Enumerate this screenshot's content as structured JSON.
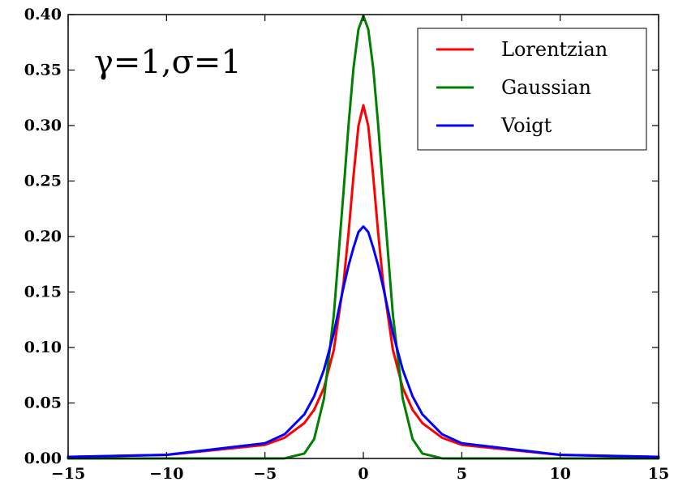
{
  "chart_data": {
    "type": "line",
    "annotation": "γ=1,σ=1",
    "xlim": [
      -15,
      15
    ],
    "ylim": [
      0,
      0.4
    ],
    "x_ticks": [
      -15,
      -10,
      -5,
      0,
      5,
      10,
      15
    ],
    "x_tick_labels": [
      "−15",
      "−10",
      "−5",
      "0",
      "5",
      "10",
      "15"
    ],
    "y_ticks": [
      0,
      0.05,
      0.1,
      0.15,
      0.2,
      0.25,
      0.3,
      0.35,
      0.4
    ],
    "y_tick_labels": [
      "0.00",
      "0.05",
      "0.10",
      "0.15",
      "0.20",
      "0.25",
      "0.30",
      "0.35",
      "0.40"
    ],
    "grid": false,
    "legend_position": "top-right",
    "x": [
      -15,
      -10,
      -5,
      -4,
      -3,
      -2.5,
      -2,
      -1.5,
      -1,
      -0.75,
      -0.5,
      -0.25,
      0,
      0.25,
      0.5,
      0.75,
      1,
      1.5,
      2,
      2.5,
      3,
      4,
      5,
      10,
      15
    ],
    "series": [
      {
        "name": "Lorentzian",
        "color": "#ff0000",
        "values": [
          0.00141,
          0.00315,
          0.01224,
          0.01872,
          0.03183,
          0.0439,
          0.06366,
          0.09794,
          0.15915,
          0.20372,
          0.25465,
          0.29958,
          0.31831,
          0.29958,
          0.25465,
          0.20372,
          0.15915,
          0.09794,
          0.06366,
          0.0439,
          0.03183,
          0.01872,
          0.01224,
          0.00315,
          0.00141
        ]
      },
      {
        "name": "Gaussian",
        "color": "#008000",
        "values": [
          0,
          0,
          1.5e-06,
          0.00013,
          0.00443,
          0.01753,
          0.05399,
          0.12952,
          0.24197,
          0.30114,
          0.35207,
          0.38667,
          0.39894,
          0.38667,
          0.35207,
          0.30114,
          0.24197,
          0.12952,
          0.05399,
          0.01753,
          0.00443,
          0.00013,
          1.5e-06,
          0,
          0
        ]
      },
      {
        "name": "Voigt",
        "color": "#0000ff",
        "values": [
          0.00144,
          0.00325,
          0.01369,
          0.0218,
          0.0397,
          0.056,
          0.08,
          0.113,
          0.155,
          0.174,
          0.19,
          0.204,
          0.209,
          0.204,
          0.19,
          0.174,
          0.155,
          0.113,
          0.08,
          0.056,
          0.0397,
          0.0218,
          0.01369,
          0.00325,
          0.00144
        ]
      }
    ]
  }
}
